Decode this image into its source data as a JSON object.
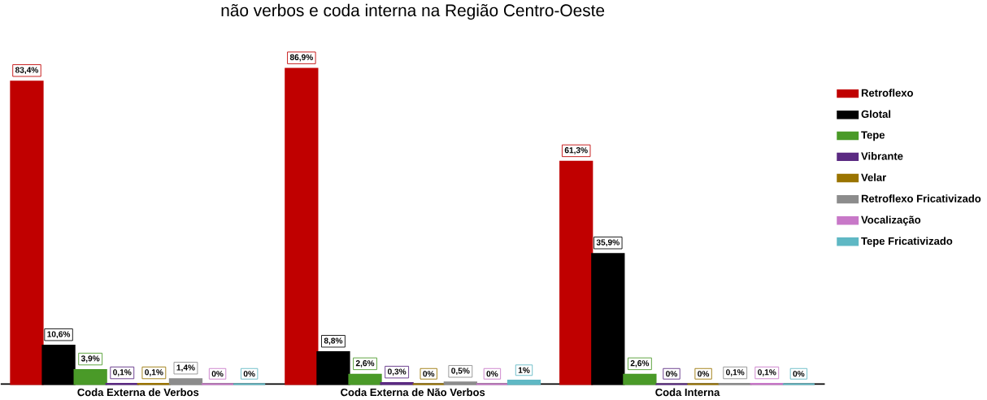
{
  "chart_data": {
    "type": "bar",
    "title": "não verbos e coda interna na Região Centro-Oeste",
    "categories": [
      "Coda Externa de Verbos",
      "Coda Externa de Não Verbos",
      "Coda Interna"
    ],
    "series": [
      {
        "name": "Retroflexo",
        "color": "#c00000",
        "values": [
          83.4,
          86.9,
          61.3
        ],
        "value_labels": [
          "83,4%",
          "86,9%",
          "61,3%"
        ]
      },
      {
        "name": "Glotal",
        "color": "#000000",
        "values": [
          10.6,
          8.8,
          35.9
        ],
        "value_labels": [
          "10,6%",
          "8,8%",
          "35,9%"
        ]
      },
      {
        "name": "Tepe",
        "color": "#4a9a28",
        "values": [
          3.9,
          2.6,
          2.6
        ],
        "value_labels": [
          "3,9%",
          "2,6%",
          "2,6%"
        ]
      },
      {
        "name": "Vibrante",
        "color": "#5b2a82",
        "values": [
          0.1,
          0.3,
          0
        ],
        "value_labels": [
          "0,1%",
          "0,3%",
          "0%"
        ]
      },
      {
        "name": "Velar",
        "color": "#9a7400",
        "values": [
          0.1,
          0,
          0
        ],
        "value_labels": [
          "0,1%",
          "0%",
          "0%"
        ]
      },
      {
        "name": "Retroflexo Fricativizado",
        "color": "#8c8c8c",
        "values": [
          1.4,
          0.5,
          0.1
        ],
        "value_labels": [
          "1,4%",
          "0,5%",
          "0,1%"
        ]
      },
      {
        "name": "Vocalização",
        "color": "#c878c8",
        "values": [
          0,
          0,
          0.1
        ],
        "value_labels": [
          "0%",
          "0%",
          "0,1%"
        ]
      },
      {
        "name": "Tepe Fricativizado",
        "color": "#5fb8c4",
        "values": [
          0,
          1,
          0
        ],
        "value_labels": [
          "0%",
          "1%",
          "0%"
        ]
      }
    ],
    "legend": "right",
    "tick_labels": "x"
  }
}
